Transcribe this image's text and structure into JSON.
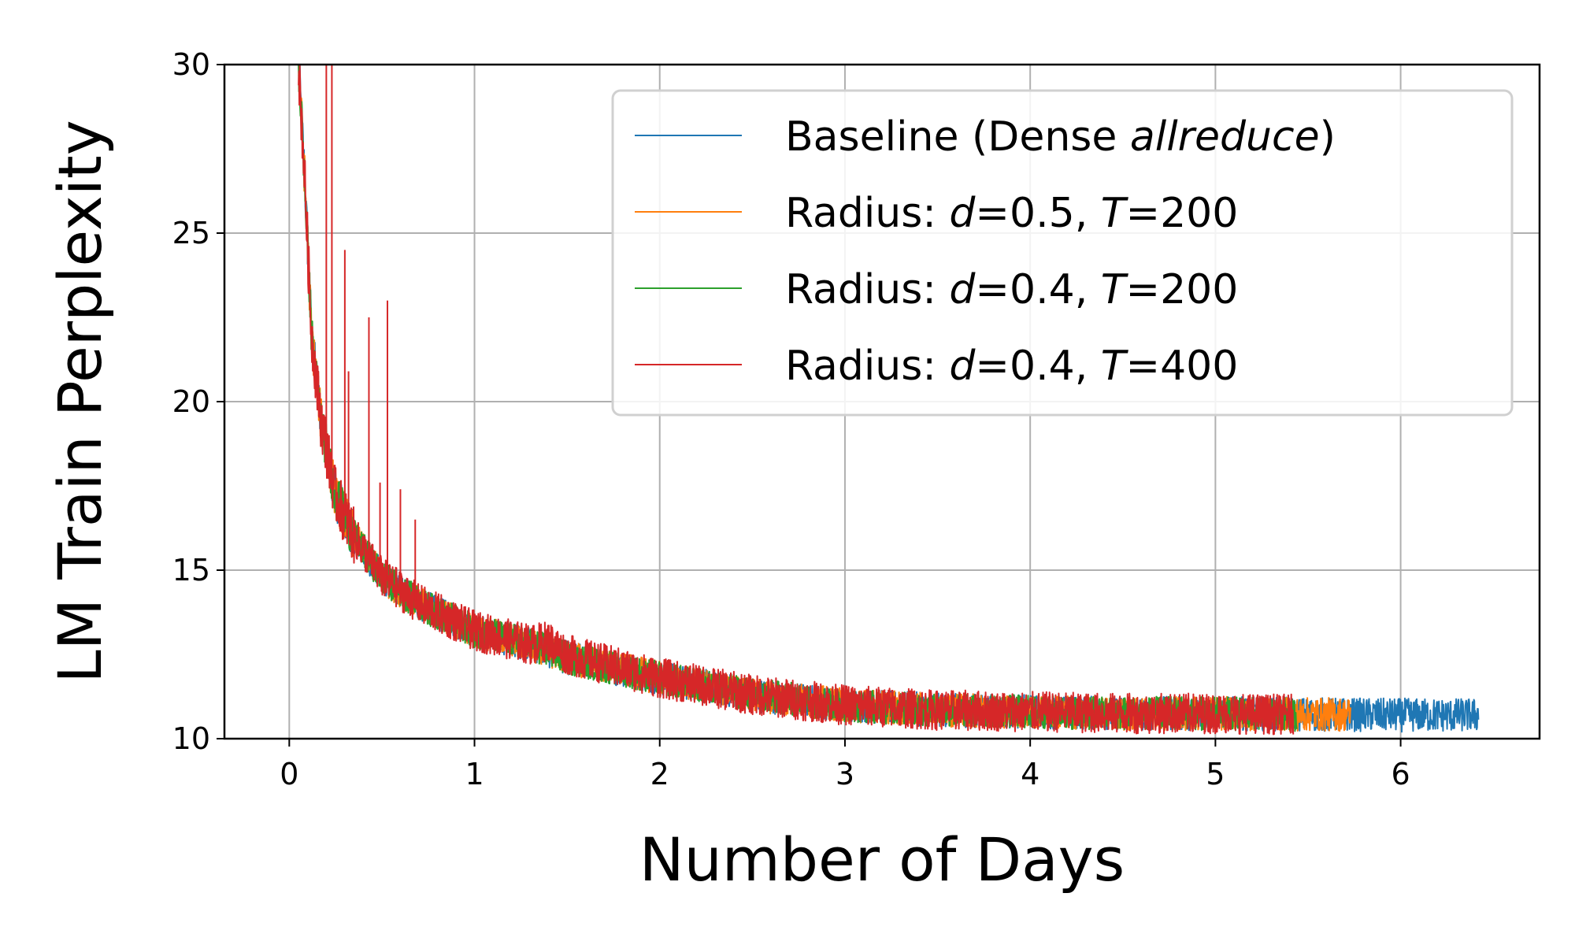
{
  "chart_data": {
    "type": "line",
    "xlabel": "Number of Days",
    "ylabel": "LM Train Perplexity",
    "xlim": [
      -0.35,
      6.75
    ],
    "ylim": [
      10,
      30
    ],
    "xticks": [
      0,
      1,
      2,
      3,
      4,
      5,
      6
    ],
    "yticks": [
      10,
      15,
      20,
      25,
      30
    ],
    "grid": true,
    "legend_position": "upper-right",
    "series": [
      {
        "name": "Baseline (Dense allreduce)",
        "legend_parts": [
          {
            "text": "Baseline (Dense ",
            "italic": false
          },
          {
            "text": "allreduce",
            "italic": true
          },
          {
            "text": ")",
            "italic": false
          }
        ],
        "color": "#1f77b4",
        "x": [
          0.05,
          0.08,
          0.12,
          0.17,
          0.25,
          0.35,
          0.5,
          0.7,
          1.0,
          1.3,
          1.5,
          2.0,
          2.5,
          3.0,
          3.5,
          4.0,
          4.5,
          5.0,
          5.5,
          6.0,
          6.42
        ],
        "y": [
          30,
          27,
          22,
          19.5,
          17.2,
          16,
          14.8,
          14,
          13.2,
          12.8,
          12.4,
          11.8,
          11.3,
          11.0,
          10.85,
          10.8,
          10.75,
          10.75,
          10.72,
          10.7,
          10.7
        ],
        "noise": 0.5
      },
      {
        "name": "Radius: d=0.5, T=200",
        "legend_parts": [
          {
            "text": "Radius: ",
            "italic": false
          },
          {
            "text": "d",
            "italic": true
          },
          {
            "text": "=0.5, ",
            "italic": false
          },
          {
            "text": "T",
            "italic": true
          },
          {
            "text": "=200",
            "italic": false
          }
        ],
        "color": "#ff7f0e",
        "x": [
          0.05,
          0.08,
          0.12,
          0.17,
          0.25,
          0.35,
          0.5,
          0.7,
          1.0,
          1.3,
          1.5,
          2.0,
          2.5,
          3.0,
          3.5,
          4.0,
          4.5,
          5.0,
          5.5,
          5.73
        ],
        "y": [
          30,
          27,
          22,
          19.5,
          17.2,
          16,
          14.8,
          14,
          13.2,
          12.8,
          12.4,
          11.8,
          11.3,
          11.0,
          10.85,
          10.8,
          10.75,
          10.75,
          10.72,
          10.72
        ],
        "noise": 0.5
      },
      {
        "name": "Radius: d=0.4, T=200",
        "legend_parts": [
          {
            "text": "Radius: ",
            "italic": false
          },
          {
            "text": "d",
            "italic": true
          },
          {
            "text": "=0.4, ",
            "italic": false
          },
          {
            "text": "T",
            "italic": true
          },
          {
            "text": "=200",
            "italic": false
          }
        ],
        "color": "#2ca02c",
        "x": [
          0.05,
          0.08,
          0.12,
          0.17,
          0.25,
          0.35,
          0.5,
          0.7,
          1.0,
          1.3,
          1.5,
          2.0,
          2.5,
          3.0,
          3.5,
          4.0,
          4.5,
          5.0,
          5.44
        ],
        "y": [
          30,
          27,
          22,
          19.5,
          17.2,
          16,
          14.8,
          14,
          13.2,
          12.8,
          12.4,
          11.8,
          11.3,
          11.0,
          10.85,
          10.8,
          10.75,
          10.75,
          10.72
        ],
        "noise": 0.5
      },
      {
        "name": "Radius: d=0.4, T=400",
        "legend_parts": [
          {
            "text": "Radius: ",
            "italic": false
          },
          {
            "text": "d",
            "italic": true
          },
          {
            "text": "=0.4, ",
            "italic": false
          },
          {
            "text": "T",
            "italic": true
          },
          {
            "text": "=400",
            "italic": false
          }
        ],
        "color": "#d62728",
        "x": [
          0.05,
          0.08,
          0.12,
          0.17,
          0.25,
          0.35,
          0.5,
          0.7,
          1.0,
          1.3,
          1.4,
          1.5,
          2.0,
          2.5,
          3.0,
          3.5,
          4.0,
          4.5,
          5.0,
          5.42
        ],
        "y": [
          30,
          27,
          22,
          19.5,
          17.2,
          16,
          14.8,
          14,
          13.2,
          12.8,
          12.9,
          12.5,
          11.8,
          11.3,
          11.0,
          10.85,
          10.8,
          10.75,
          10.75,
          10.72
        ],
        "noise": 0.6,
        "spikes": [
          {
            "x": 0.2,
            "y": 30
          },
          {
            "x": 0.23,
            "y": 30
          },
          {
            "x": 0.3,
            "y": 24.5
          },
          {
            "x": 0.32,
            "y": 20.9
          },
          {
            "x": 0.43,
            "y": 22.5
          },
          {
            "x": 0.49,
            "y": 17.6
          },
          {
            "x": 0.53,
            "y": 23.0
          },
          {
            "x": 0.6,
            "y": 17.4
          },
          {
            "x": 0.68,
            "y": 16.5
          }
        ]
      }
    ]
  }
}
